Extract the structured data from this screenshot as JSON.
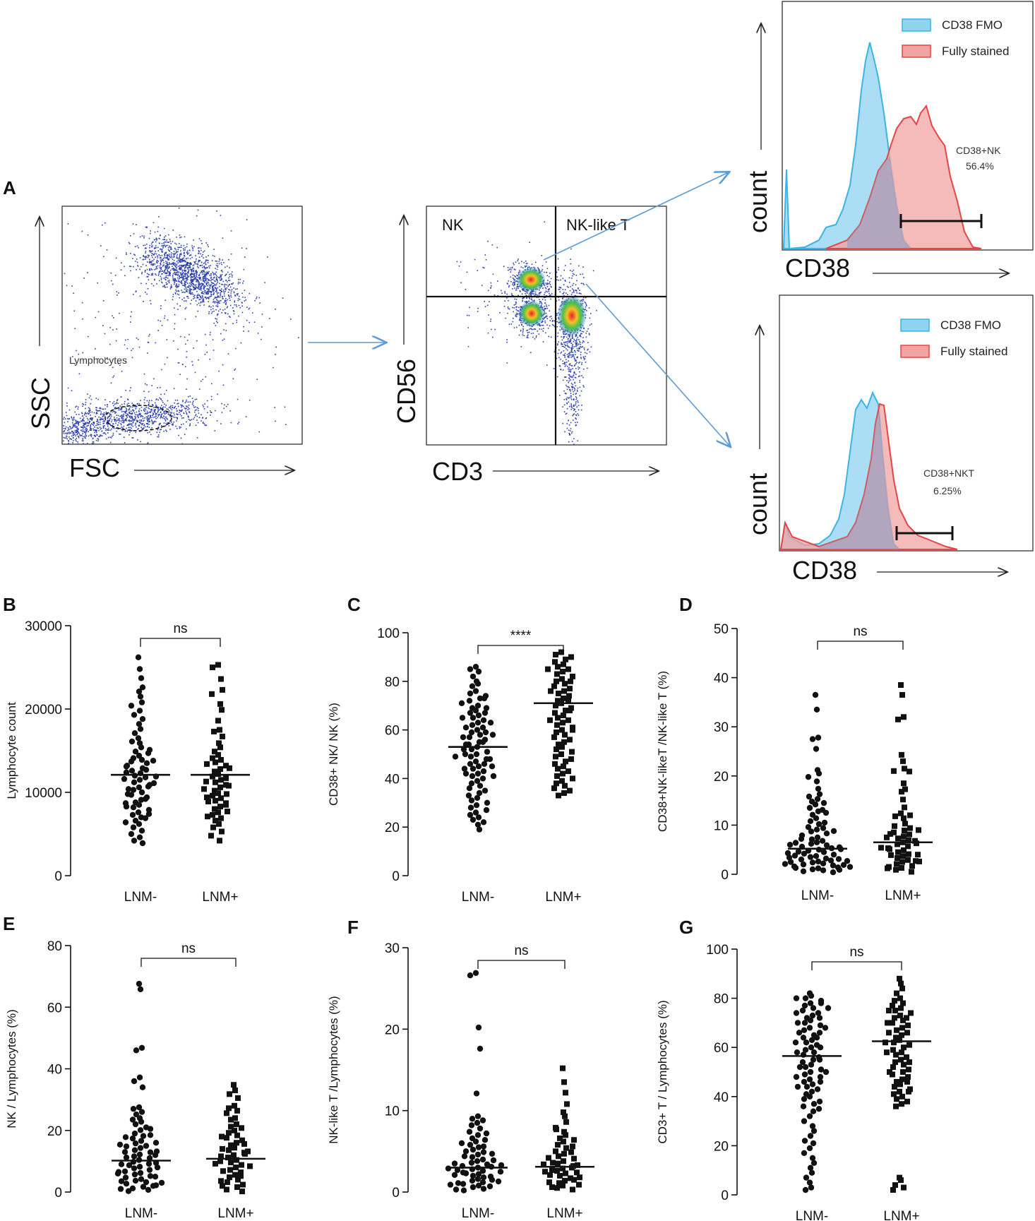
{
  "figure_label": "A",
  "flow": {
    "scatter1": {
      "x_label": "FSC",
      "y_label": "SSC",
      "gate_label": "Lymphocytes"
    },
    "scatter2": {
      "x_label": "CD3",
      "y_label": "CD56",
      "quad_nk": "NK",
      "quad_nkt": "NK-like T"
    },
    "hist_top": {
      "x_label": "CD38",
      "y_label": "count",
      "legend": [
        "CD38 FMO",
        "Fully stained"
      ],
      "gate_name": "CD38+NK",
      "gate_value": "56.4%"
    },
    "hist_bottom": {
      "x_label": "CD38",
      "y_label": "count",
      "legend": [
        "CD38 FMO",
        "Fully stained"
      ],
      "gate_name": "CD38+NKT",
      "gate_value": "6.25%"
    },
    "colors": {
      "fmo": "#8fd3f0",
      "fmo_line": "#3ab4e6",
      "stained": "#f2a3a3",
      "stained_line": "#e64545",
      "dots": "#2b3fae",
      "gate_arrow": "#5b9bd5"
    }
  },
  "chart_data": [
    {
      "panel": "B",
      "type": "scatter",
      "categories": [
        "LNM-",
        "LNM+"
      ],
      "ylabel": "Lymphocyte count",
      "ylim": [
        0,
        30000
      ],
      "yticks": [
        0,
        10000,
        20000,
        30000
      ],
      "significance": "ns",
      "medians": [
        12100,
        12100
      ],
      "series": [
        {
          "name": "LNM-",
          "marker": "circle",
          "values": [
            26200,
            24800,
            23700,
            22600,
            22100,
            21500,
            20800,
            20400,
            19800,
            19300,
            18800,
            18200,
            17600,
            17100,
            16500,
            15900,
            15400,
            14900,
            14400,
            14100,
            13900,
            13700,
            13500,
            13200,
            12900,
            12600,
            12300,
            12000,
            11800,
            11500,
            11200,
            10900,
            10600,
            10300,
            10000,
            9700,
            9400,
            9100,
            8800,
            8500,
            8200,
            7900,
            7600,
            7300,
            7000,
            6600,
            6200,
            5800,
            5400,
            5000,
            4600,
            4200,
            3900,
            13800,
            12400,
            11900,
            11600,
            11100,
            10700,
            10400,
            12700,
            13100,
            9800,
            9200,
            8700,
            14700,
            15100,
            16100,
            8300,
            7400,
            6900,
            6400
          ]
        },
        {
          "name": "LNM+",
          "marker": "square",
          "values": [
            25300,
            25000,
            23600,
            22300,
            21800,
            20600,
            19900,
            18600,
            17500,
            17300,
            16700,
            15900,
            15400,
            14900,
            14500,
            14100,
            13900,
            13600,
            13200,
            12800,
            12500,
            12200,
            11900,
            11500,
            11200,
            10900,
            10600,
            10200,
            9900,
            9600,
            9300,
            9000,
            8700,
            8300,
            8000,
            7600,
            7300,
            6900,
            6600,
            6200,
            5800,
            5300,
            4800,
            4200,
            13400,
            12900,
            11700,
            11300,
            10800,
            10400,
            9800,
            9400,
            8900,
            8500,
            7700,
            7100
          ]
        }
      ]
    },
    {
      "panel": "C",
      "type": "scatter",
      "categories": [
        "LNM-",
        "LNM+"
      ],
      "ylabel": "CD38+ NK/ NK (%)",
      "ylim": [
        0,
        100
      ],
      "yticks": [
        0,
        20,
        40,
        60,
        80,
        100
      ],
      "significance": "****",
      "medians": [
        53,
        71
      ],
      "series": [
        {
          "name": "LNM-",
          "marker": "circle",
          "values": [
            86,
            85,
            84,
            82,
            80,
            79,
            78,
            76,
            75,
            74,
            73,
            72,
            70,
            69,
            68,
            67,
            66,
            65,
            64,
            63,
            62,
            61,
            60,
            59,
            58,
            57,
            56,
            55,
            54,
            53,
            52,
            51,
            50,
            49,
            48,
            47,
            46,
            45,
            44,
            43,
            42,
            41,
            40,
            39,
            38,
            37,
            36,
            35,
            34,
            33,
            32,
            31,
            30,
            29,
            28,
            27,
            26,
            25,
            24,
            23,
            22,
            21,
            19,
            55,
            57,
            59,
            61,
            63,
            52,
            50,
            48,
            46,
            44,
            42,
            65,
            67,
            69,
            71,
            73,
            58,
            54,
            49,
            45,
            41
          ]
        },
        {
          "name": "LNM+",
          "marker": "square",
          "values": [
            92,
            91,
            90,
            89,
            88,
            87,
            86,
            85,
            84,
            83,
            82,
            81,
            80,
            79,
            78,
            77,
            76,
            75,
            74,
            73,
            72,
            71,
            70,
            69,
            68,
            67,
            66,
            65,
            64,
            63,
            62,
            61,
            60,
            59,
            58,
            57,
            56,
            55,
            54,
            53,
            52,
            51,
            50,
            49,
            48,
            47,
            46,
            45,
            44,
            43,
            42,
            41,
            40,
            39,
            38,
            37,
            36,
            35,
            34,
            33,
            85,
            80,
            76,
            72,
            68,
            64,
            60
          ]
        }
      ]
    },
    {
      "panel": "D",
      "type": "scatter",
      "categories": [
        "LNM-",
        "LNM+"
      ],
      "ylabel": "CD38+NK-likeT /NK-like T (%)",
      "ylim": [
        0,
        50
      ],
      "yticks": [
        0,
        10,
        20,
        30,
        40,
        50
      ],
      "significance": "ns",
      "medians": [
        5.2,
        6.5
      ],
      "series": [
        {
          "name": "LNM-",
          "marker": "circle",
          "values": [
            36.5,
            33.5,
            27.8,
            27.5,
            25.5,
            21.2,
            20.5,
            19.8,
            18.9,
            17.4,
            16.3,
            15.8,
            15.3,
            14.8,
            14.2,
            13.5,
            12.8,
            12.1,
            11.4,
            10.8,
            10.2,
            9.6,
            9.1,
            8.7,
            8.3,
            7.9,
            7.5,
            7.1,
            6.8,
            6.5,
            6.2,
            5.9,
            5.6,
            5.3,
            5.0,
            4.8,
            4.5,
            4.2,
            4.0,
            3.7,
            3.5,
            3.2,
            3.0,
            2.8,
            2.6,
            2.4,
            2.2,
            2.0,
            1.8,
            1.6,
            1.4,
            1.2,
            1.0,
            0.8,
            0.6,
            0.4,
            7.2,
            6.4,
            5.5,
            4.6,
            3.8,
            3.1,
            2.5,
            1.9,
            1.3,
            0.9,
            8.8,
            9.4,
            10.5,
            12.5,
            13.1,
            14.5,
            6.0,
            5.1,
            4.3,
            3.4,
            2.7,
            2.1,
            1.5
          ]
        },
        {
          "name": "LNM+",
          "marker": "square",
          "values": [
            38.5,
            36.5,
            32.0,
            31.5,
            24.3,
            23.0,
            21.5,
            21.0,
            20.9,
            18.5,
            17.3,
            16.8,
            15.2,
            13.6,
            12.4,
            11.8,
            11.4,
            10.3,
            9.8,
            9.4,
            8.9,
            8.5,
            8.1,
            7.7,
            7.3,
            6.9,
            6.5,
            6.1,
            5.7,
            5.3,
            4.9,
            4.5,
            4.1,
            3.7,
            3.3,
            2.9,
            2.5,
            2.1,
            1.7,
            1.3,
            0.9,
            0.5,
            7.5,
            6.3,
            5.1,
            3.9,
            2.7,
            1.5,
            8.2,
            6.8,
            5.4,
            4.0,
            2.6,
            1.2,
            12.0,
            9.0
          ]
        }
      ]
    },
    {
      "panel": "E",
      "type": "scatter",
      "categories": [
        "LNM-",
        "LNM+"
      ],
      "ylabel": "NK / Lymphocytes (%)",
      "ylim": [
        0,
        80
      ],
      "yticks": [
        0,
        20,
        40,
        60,
        80
      ],
      "significance": "ns",
      "medians": [
        10.2,
        10.8
      ],
      "series": [
        {
          "name": "LNM-",
          "marker": "circle",
          "values": [
            67.6,
            65.8,
            46.8,
            46.0,
            37.2,
            36.0,
            34.0,
            27.5,
            27.0,
            26.0,
            25.2,
            24.0,
            22.8,
            22.0,
            21.0,
            20.1,
            19.0,
            18.2,
            17.4,
            16.6,
            15.8,
            15.0,
            14.3,
            13.6,
            12.9,
            12.2,
            11.6,
            11.0,
            10.4,
            9.8,
            9.2,
            8.7,
            8.2,
            7.7,
            7.2,
            6.7,
            6.2,
            5.7,
            5.2,
            4.7,
            4.2,
            3.7,
            3.2,
            2.7,
            2.2,
            1.7,
            1.2,
            0.7,
            0.3,
            13.0,
            11.2,
            9.5,
            8.0,
            6.5,
            5.0,
            3.5,
            2.0,
            14.8,
            16.0,
            18.5,
            23.5,
            12.0,
            9.0,
            6.0,
            3.0,
            1.0,
            20.5,
            17.8,
            15.4,
            13.2
          ]
        },
        {
          "name": "LNM+",
          "marker": "square",
          "values": [
            34.8,
            33.0,
            31.8,
            30.5,
            28.0,
            27.2,
            26.4,
            25.6,
            24.0,
            22.0,
            21.2,
            20.0,
            19.2,
            18.4,
            17.6,
            16.8,
            16.0,
            15.2,
            14.4,
            13.6,
            12.8,
            12.0,
            11.2,
            10.4,
            9.6,
            8.8,
            8.0,
            7.2,
            6.4,
            5.6,
            4.8,
            4.0,
            3.2,
            2.4,
            1.6,
            0.8,
            0.2,
            14.0,
            12.4,
            10.0,
            8.4,
            6.8,
            5.2,
            3.6,
            2.0,
            23.5,
            20.8,
            18.0,
            15.6,
            13.2,
            11.6,
            9.2
          ]
        }
      ]
    },
    {
      "panel": "F",
      "type": "scatter",
      "categories": [
        "LNM-",
        "LNM+"
      ],
      "ylabel": "NK-like T /Lymphocytes (%)",
      "ylim": [
        0,
        30
      ],
      "yticks": [
        0,
        10,
        20,
        30
      ],
      "significance": "ns",
      "medians": [
        3.0,
        3.1
      ],
      "series": [
        {
          "name": "LNM-",
          "marker": "circle",
          "values": [
            26.9,
            26.6,
            20.2,
            17.6,
            12.1,
            9.3,
            9.0,
            8.8,
            8.5,
            8.2,
            7.8,
            7.4,
            7.0,
            6.6,
            6.2,
            5.8,
            5.5,
            5.2,
            4.9,
            4.6,
            4.3,
            4.0,
            3.8,
            3.6,
            3.4,
            3.2,
            3.0,
            2.8,
            2.6,
            2.4,
            2.2,
            2.0,
            1.8,
            1.6,
            1.4,
            1.2,
            1.0,
            0.8,
            0.6,
            0.4,
            0.2,
            3.9,
            3.5,
            3.1,
            2.7,
            2.3,
            1.9,
            1.5,
            1.1,
            0.7,
            0.3,
            4.4,
            5.0,
            5.6,
            6.4,
            2.5,
            2.1,
            1.3,
            0.9,
            3.3,
            2.9,
            4.7,
            7.2,
            6.0
          ]
        },
        {
          "name": "LNM+",
          "marker": "square",
          "values": [
            15.2,
            13.5,
            12.2,
            10.8,
            9.8,
            9.3,
            8.6,
            7.9,
            7.4,
            7.0,
            6.6,
            6.2,
            5.8,
            5.4,
            5.0,
            4.7,
            4.4,
            4.1,
            3.8,
            3.5,
            3.2,
            2.9,
            2.6,
            2.3,
            2.0,
            1.7,
            1.4,
            1.1,
            0.8,
            0.5,
            0.3,
            3.6,
            3.3,
            3.0,
            2.7,
            2.4,
            2.1,
            1.8,
            1.5,
            1.2,
            0.9,
            0.6,
            4.2,
            4.9,
            5.6,
            6.4,
            7.7,
            3.4,
            2.5
          ]
        }
      ]
    },
    {
      "panel": "G",
      "type": "scatter",
      "categories": [
        "LNM-",
        "LNM+"
      ],
      "ylabel": "CD3+ T / Lymphocytes (%)",
      "ylim": [
        0,
        100
      ],
      "yticks": [
        0,
        20,
        40,
        60,
        80,
        100
      ],
      "significance": "ns",
      "medians": [
        56.5,
        62.5
      ],
      "series": [
        {
          "name": "LNM-",
          "marker": "circle",
          "values": [
            82,
            81,
            80,
            79,
            78,
            77,
            76,
            75,
            74,
            73,
            72,
            71,
            70,
            69,
            68,
            67,
            66,
            65,
            64,
            63,
            62,
            61,
            60,
            59,
            58,
            57,
            56,
            55,
            54,
            53,
            52,
            51,
            50,
            49,
            48,
            47,
            46,
            45,
            44,
            43,
            42,
            41,
            40,
            39,
            38,
            37,
            36,
            35,
            34,
            32,
            30,
            28,
            26,
            24,
            22,
            21,
            19,
            17,
            15,
            13,
            11,
            9,
            7,
            5,
            3,
            2,
            78,
            74,
            70,
            66,
            62,
            58,
            55,
            52,
            48,
            44,
            60,
            64,
            68,
            72,
            76,
            80,
            50,
            46
          ]
        },
        {
          "name": "LNM+",
          "marker": "square",
          "values": [
            88,
            86,
            84,
            82,
            80,
            79,
            78,
            77,
            76,
            75,
            74,
            73,
            72,
            71,
            70,
            69,
            68,
            67,
            66,
            65,
            64,
            63,
            62,
            61,
            60,
            59,
            58,
            57,
            56,
            55,
            54,
            53,
            52,
            51,
            50,
            49,
            48,
            47,
            46,
            45,
            44,
            43,
            42,
            41,
            40,
            39,
            38,
            37,
            36,
            7,
            6,
            4,
            3,
            2,
            70,
            66,
            62,
            58,
            54,
            50,
            46,
            42,
            75,
            72
          ]
        }
      ]
    }
  ]
}
